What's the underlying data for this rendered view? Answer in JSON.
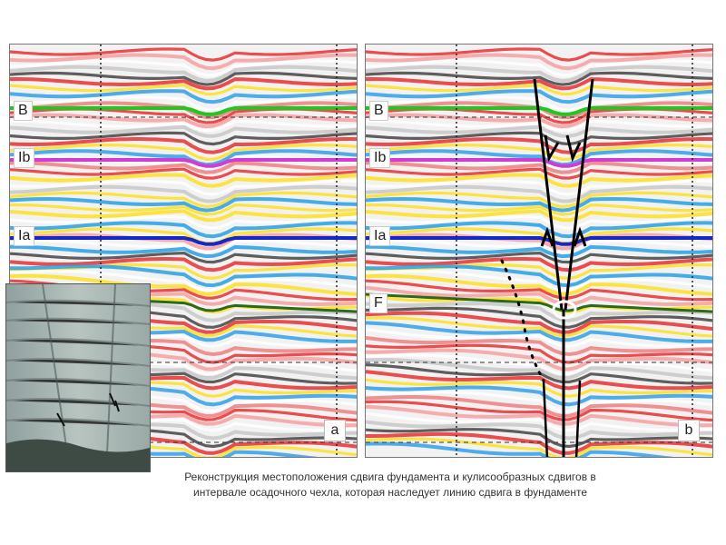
{
  "panels": [
    {
      "id": "a",
      "panel_label": "a",
      "horizons": [
        "B",
        "Ib",
        "Ia"
      ]
    },
    {
      "id": "b",
      "panel_label": "b",
      "horizons": [
        "B",
        "Ib",
        "Ia",
        "F"
      ]
    }
  ],
  "colors": {
    "horizon_B": "#1ec81e",
    "horizon_Ib": "#d23cd2",
    "horizon_Ia": "#1428c8",
    "horizon_F": "#2a6a1a",
    "fault_lines": "#000000",
    "circle_marker": "#ffffff"
  },
  "icons": [
    "fault-arrow-down-icon",
    "fault-arrow-up-icon",
    "fault-circle-icon"
  ],
  "caption": {
    "line1": "Реконструкция местоположения сдвига фундамента и кулисообразных сдвигов в",
    "line2": "интервале осадочного чехла, которая наследует линию сдвига в фундаменте"
  }
}
